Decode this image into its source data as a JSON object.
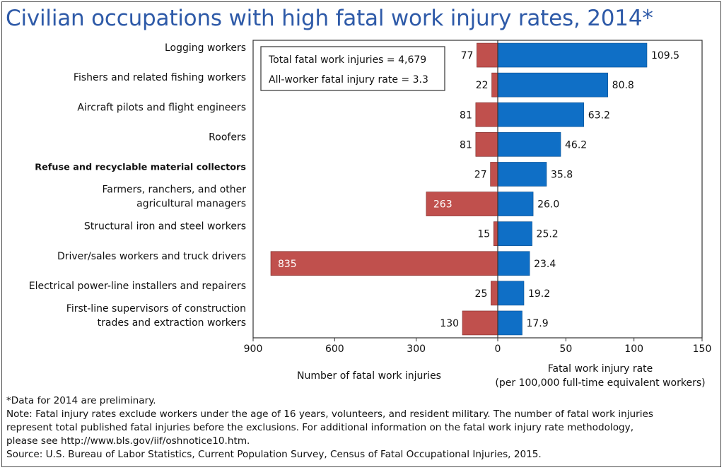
{
  "title": "Civilian occupations with high fatal work injury rates, 2014*",
  "chart_data": {
    "type": "bar",
    "categories": [
      [
        "Logging workers"
      ],
      [
        "Fishers and related fishing workers"
      ],
      [
        "Aircraft pilots and flight engineers"
      ],
      [
        "Roofers"
      ],
      [
        "Refuse and recyclable material collectors"
      ],
      [
        "Farmers, ranchers, and other",
        "agricultural managers"
      ],
      [
        "Structural iron and steel workers"
      ],
      [
        "Driver/sales workers and truck drivers"
      ],
      [
        "Electrical power-line installers and repairers"
      ],
      [
        "First-line supervisors of construction",
        "trades and extraction workers"
      ]
    ],
    "series": [
      {
        "name": "Number of fatal work injuries",
        "color": "#c0504d",
        "values": [
          77,
          22,
          81,
          81,
          27,
          263,
          15,
          835,
          25,
          130
        ],
        "labels": [
          "77",
          "22",
          "81",
          "81",
          "27",
          "263",
          "15",
          "835",
          "25",
          "130"
        ],
        "xlim": [
          900,
          0
        ],
        "ticks": [
          900,
          600,
          300,
          0
        ],
        "tick_labels": [
          "900",
          "600",
          "300",
          "0"
        ]
      },
      {
        "name": "Fatal work injury rate",
        "color": "#0f6fc6",
        "values": [
          109.5,
          80.8,
          63.2,
          46.2,
          35.8,
          26.0,
          25.2,
          23.4,
          19.2,
          17.9
        ],
        "labels": [
          "109.5",
          "80.8",
          "63.2",
          "46.2",
          "35.8",
          "26.0",
          "25.2",
          "23.4",
          "19.2",
          "17.9"
        ],
        "xlim": [
          0,
          150
        ],
        "ticks": [
          50,
          100,
          150
        ],
        "tick_labels": [
          "50",
          "100",
          "150"
        ]
      }
    ],
    "xlabel_left": "Number of fatal work injuries",
    "xlabel_right": [
      "Fatal work injury rate",
      "(per 100,000 full-time equivalent workers)"
    ],
    "annotations": [
      "Total fatal work injuries = 4,679",
      "All-worker fatal injury rate = 3.3"
    ]
  },
  "notes": [
    "*Data for 2014 are preliminary.",
    "Note: Fatal injury rates exclude workers under the age of 16 years, volunteers, and resident military. The number of fatal work injuries",
    "represent total published fatal injuries before the exclusions.  For additional information on the fatal work injury rate methodology,",
    "please see http://www.bls.gov/iif/oshnotice10.htm.",
    "Source: U.S. Bureau of Labor Statistics, Current Population Survey, Census of Fatal Occupational Injuries, 2015."
  ]
}
